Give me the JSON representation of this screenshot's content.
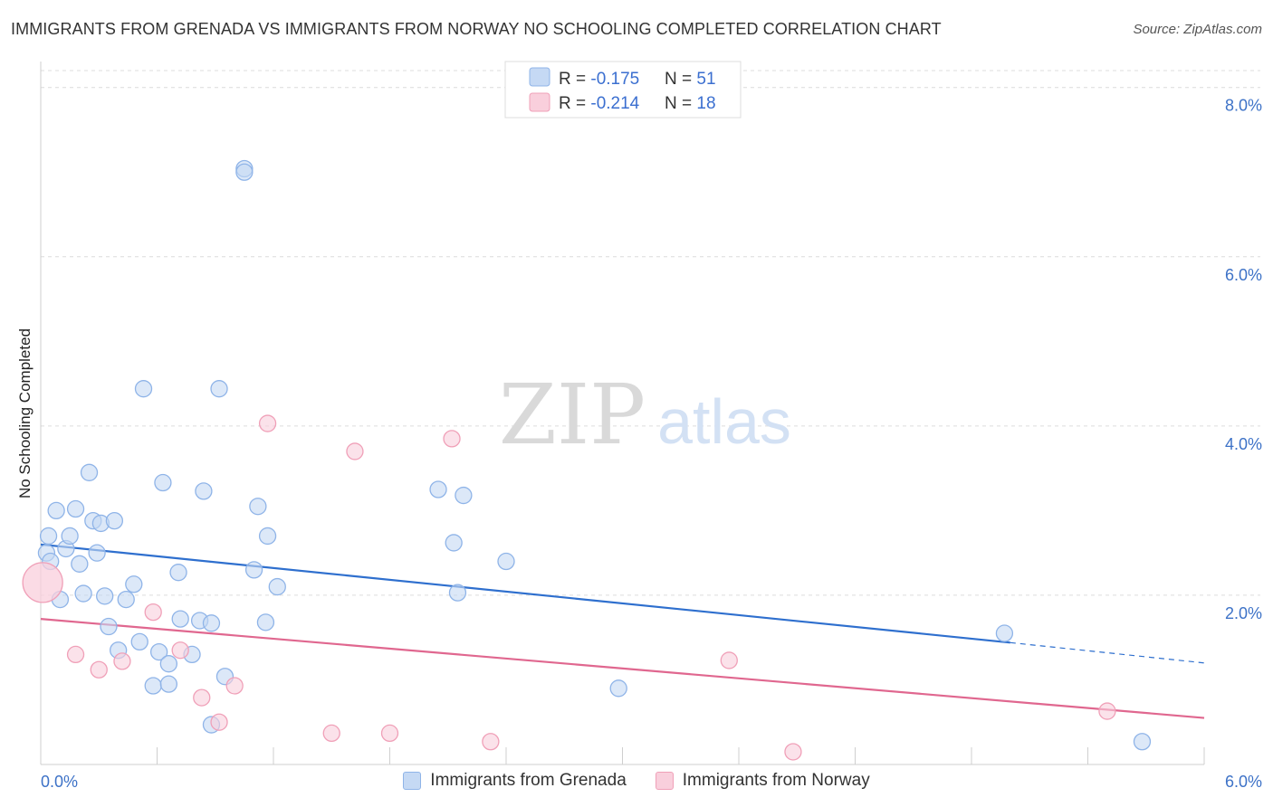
{
  "header": {
    "title": "IMMIGRANTS FROM GRENADA VS IMMIGRANTS FROM NORWAY NO SCHOOLING COMPLETED CORRELATION CHART",
    "source": "Source: ZipAtlas.com"
  },
  "watermark": {
    "zip": "ZIP",
    "atlas": "atlas"
  },
  "chart_data": {
    "type": "scatter",
    "ylabel": "No Schooling Completed",
    "xlabel": "",
    "xlim": [
      0,
      6
    ],
    "ylim": [
      0,
      8.2
    ],
    "x_tick_labels": [
      "0.0%",
      "6.0%"
    ],
    "y_ticks": [
      2,
      4,
      6,
      8
    ],
    "y_tick_labels": [
      "2.0%",
      "4.0%",
      "6.0%",
      "8.0%"
    ],
    "legend": [
      {
        "r_label": "R = ",
        "r_value": "-0.175",
        "n_label": "N = ",
        "n_value": "51"
      },
      {
        "r_label": "R = ",
        "r_value": "-0.214",
        "n_label": "N = ",
        "n_value": "18"
      }
    ],
    "series": [
      {
        "name": "Immigrants from Grenada",
        "color": "#8fb4e8",
        "fill": "#c5d9f4",
        "line_color": "#2e6fce",
        "trend": {
          "x0": 0,
          "y0": 2.6,
          "x1": 5.0,
          "y1": 1.44,
          "dash_to_x": 6.0,
          "dash_to_y": 1.2
        },
        "points": [
          [
            0.03,
            2.5
          ],
          [
            0.05,
            2.4
          ],
          [
            0.04,
            2.7
          ],
          [
            0.08,
            3.0
          ],
          [
            0.1,
            1.95
          ],
          [
            0.13,
            2.55
          ],
          [
            0.15,
            2.7
          ],
          [
            0.18,
            3.02
          ],
          [
            0.2,
            2.37
          ],
          [
            0.22,
            2.02
          ],
          [
            0.25,
            3.45
          ],
          [
            0.27,
            2.88
          ],
          [
            0.29,
            2.5
          ],
          [
            0.31,
            2.85
          ],
          [
            0.33,
            1.99
          ],
          [
            0.35,
            1.63
          ],
          [
            0.38,
            2.88
          ],
          [
            0.4,
            1.35
          ],
          [
            0.44,
            1.95
          ],
          [
            0.48,
            2.13
          ],
          [
            0.51,
            1.45
          ],
          [
            0.53,
            4.44
          ],
          [
            0.58,
            0.93
          ],
          [
            0.61,
            1.33
          ],
          [
            0.63,
            3.33
          ],
          [
            0.66,
            1.19
          ],
          [
            0.66,
            0.95
          ],
          [
            0.71,
            2.27
          ],
          [
            0.72,
            1.72
          ],
          [
            0.78,
            1.3
          ],
          [
            0.82,
            1.7
          ],
          [
            0.84,
            3.23
          ],
          [
            0.88,
            0.47
          ],
          [
            0.88,
            1.67
          ],
          [
            0.92,
            4.44
          ],
          [
            0.95,
            1.04
          ],
          [
            1.05,
            7.04
          ],
          [
            1.05,
            7.0
          ],
          [
            1.1,
            2.3
          ],
          [
            1.12,
            3.05
          ],
          [
            1.16,
            1.68
          ],
          [
            1.17,
            2.7
          ],
          [
            1.22,
            2.1
          ],
          [
            2.05,
            3.25
          ],
          [
            2.13,
            2.62
          ],
          [
            2.15,
            2.03
          ],
          [
            2.18,
            3.18
          ],
          [
            2.4,
            2.4
          ],
          [
            2.98,
            0.9
          ],
          [
            4.97,
            1.55
          ],
          [
            5.68,
            0.27
          ]
        ]
      },
      {
        "name": "Immigrants from Norway",
        "color": "#f0a0b8",
        "fill": "#f9cfdc",
        "line_color": "#e0678f",
        "trend": {
          "x0": 0,
          "y0": 1.72,
          "x1": 6.0,
          "y1": 0.55
        },
        "points": [
          [
            0.01,
            2.15,
            "large"
          ],
          [
            0.18,
            1.3
          ],
          [
            0.3,
            1.12
          ],
          [
            0.42,
            1.22
          ],
          [
            0.58,
            1.8
          ],
          [
            0.72,
            1.35
          ],
          [
            0.83,
            0.79
          ],
          [
            0.92,
            0.5
          ],
          [
            1.0,
            0.93
          ],
          [
            1.17,
            4.03
          ],
          [
            1.5,
            0.37
          ],
          [
            1.62,
            3.7
          ],
          [
            1.8,
            0.37
          ],
          [
            2.12,
            3.85
          ],
          [
            2.32,
            0.27
          ],
          [
            3.55,
            1.23
          ],
          [
            3.88,
            0.15
          ],
          [
            5.5,
            0.63
          ]
        ]
      }
    ]
  }
}
